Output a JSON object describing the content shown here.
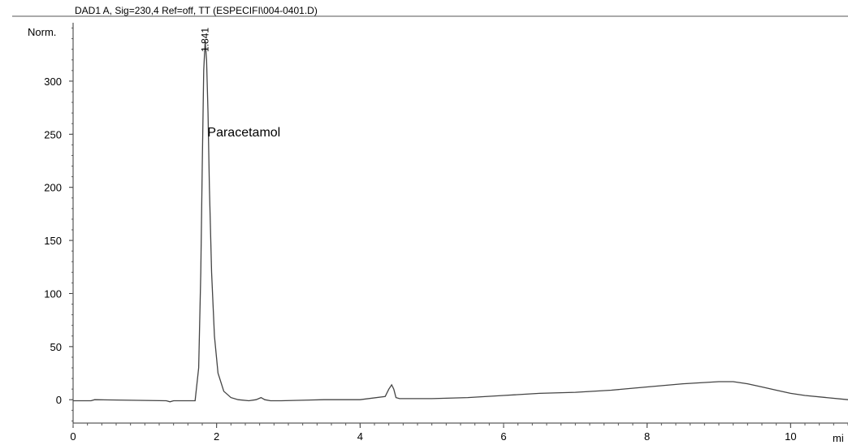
{
  "chart_data": {
    "type": "line",
    "title": "DAD1 A, Sig=230,4 Ref=off, TT (ESPECIFI\\004-0401.D)",
    "ylabel": "Norm.",
    "xlabel": "mi",
    "xlim": [
      0,
      10.8
    ],
    "ylim": [
      -22,
      355
    ],
    "x_ticks": [
      0,
      2,
      4,
      6,
      8,
      10
    ],
    "y_ticks": [
      0,
      50,
      100,
      150,
      200,
      250,
      300
    ],
    "grid": false,
    "line_color": "#444444",
    "series": [
      {
        "x": [
          0,
          0.25,
          0.3,
          1.3,
          1.35,
          1.4,
          1.6,
          1.7,
          1.75,
          1.78,
          1.8,
          1.82,
          1.841,
          1.86,
          1.88,
          1.9,
          1.93,
          1.97,
          2.02,
          2.1,
          2.2,
          2.3,
          2.45,
          2.55,
          2.62,
          2.67,
          2.75,
          2.9,
          3.5,
          4.0,
          4.35,
          4.4,
          4.44,
          4.47,
          4.5,
          4.55,
          4.7,
          5.0,
          5.5,
          6.0,
          6.5,
          7.0,
          7.5,
          8.0,
          8.5,
          9.0,
          9.2,
          9.4,
          9.6,
          9.8,
          10.0,
          10.2,
          10.5,
          10.8
        ],
        "y": [
          -1,
          -1,
          0,
          -1,
          -2,
          -1,
          -1,
          -1,
          30,
          120,
          220,
          310,
          338,
          320,
          270,
          200,
          120,
          60,
          25,
          8,
          2,
          0,
          -1,
          0,
          2,
          0,
          -1,
          -1,
          0,
          0,
          3,
          10,
          14,
          10,
          2,
          1,
          1,
          1,
          2,
          4,
          6,
          7,
          9,
          12,
          15,
          17,
          17,
          15,
          12,
          9,
          6,
          4,
          2,
          0
        ]
      }
    ],
    "annotations": [
      {
        "text": "Paracetamol",
        "x": 1.85,
        "y": 248
      },
      {
        "text": "1.841",
        "x": 1.841,
        "y": 338
      }
    ]
  }
}
